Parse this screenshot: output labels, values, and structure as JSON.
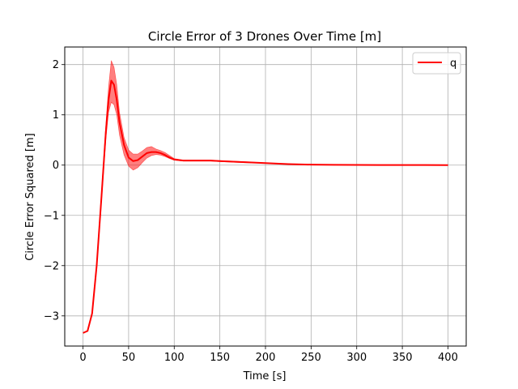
{
  "chart_data": {
    "type": "line",
    "title": "Circle Error of 3 Drones Over Time [m]",
    "xlabel": "Time [s]",
    "ylabel": "Circle Error Squared [m]",
    "xlim": [
      -20,
      420
    ],
    "ylim": [
      -3.6,
      2.35
    ],
    "xticks": [
      0,
      50,
      100,
      150,
      200,
      250,
      300,
      350,
      400
    ],
    "yticks": [
      -3,
      -2,
      -1,
      0,
      1,
      2
    ],
    "xtick_labels": [
      "0",
      "50",
      "100",
      "150",
      "200",
      "250",
      "300",
      "350",
      "400"
    ],
    "ytick_labels": [
      "−3",
      "−2",
      "−1",
      "0",
      "1",
      "2"
    ],
    "grid": true,
    "legend_position": "top-right",
    "series": [
      {
        "name": "q",
        "color": "#ff0000",
        "x": [
          0,
          5,
          10,
          15,
          20,
          25,
          28,
          31,
          34,
          37,
          40,
          45,
          50,
          55,
          60,
          65,
          70,
          75,
          80,
          85,
          90,
          95,
          100,
          110,
          120,
          130,
          140,
          150,
          175,
          200,
          225,
          250,
          275,
          300,
          325,
          350,
          375,
          400
        ],
        "y": [
          -3.34,
          -3.3,
          -2.95,
          -2.0,
          -0.7,
          0.65,
          1.3,
          1.68,
          1.6,
          1.3,
          0.85,
          0.4,
          0.15,
          0.08,
          0.1,
          0.17,
          0.24,
          0.26,
          0.26,
          0.24,
          0.2,
          0.15,
          0.11,
          0.09,
          0.09,
          0.09,
          0.09,
          0.08,
          0.06,
          0.04,
          0.02,
          0.01,
          0.005,
          0.003,
          0.002,
          0.001,
          0.001,
          0.0
        ],
        "lower": [
          -3.34,
          -3.3,
          -2.95,
          -2.05,
          -0.8,
          0.5,
          1.05,
          1.25,
          1.2,
          1.0,
          0.6,
          0.2,
          -0.02,
          -0.1,
          -0.05,
          0.05,
          0.14,
          0.19,
          0.21,
          0.2,
          0.17,
          0.13,
          0.1,
          0.08,
          0.08,
          0.08,
          0.08,
          0.07,
          0.05,
          0.035,
          0.015,
          0.008,
          0.004,
          0.002,
          0.001,
          0.0,
          0.0,
          -0.005
        ],
        "upper": [
          -3.34,
          -3.3,
          -2.95,
          -1.95,
          -0.6,
          0.8,
          1.55,
          2.08,
          1.95,
          1.6,
          1.05,
          0.55,
          0.3,
          0.22,
          0.22,
          0.28,
          0.35,
          0.37,
          0.32,
          0.29,
          0.25,
          0.19,
          0.13,
          0.1,
          0.1,
          0.1,
          0.1,
          0.09,
          0.07,
          0.045,
          0.025,
          0.012,
          0.006,
          0.004,
          0.003,
          0.002,
          0.002,
          0.005
        ]
      }
    ]
  }
}
